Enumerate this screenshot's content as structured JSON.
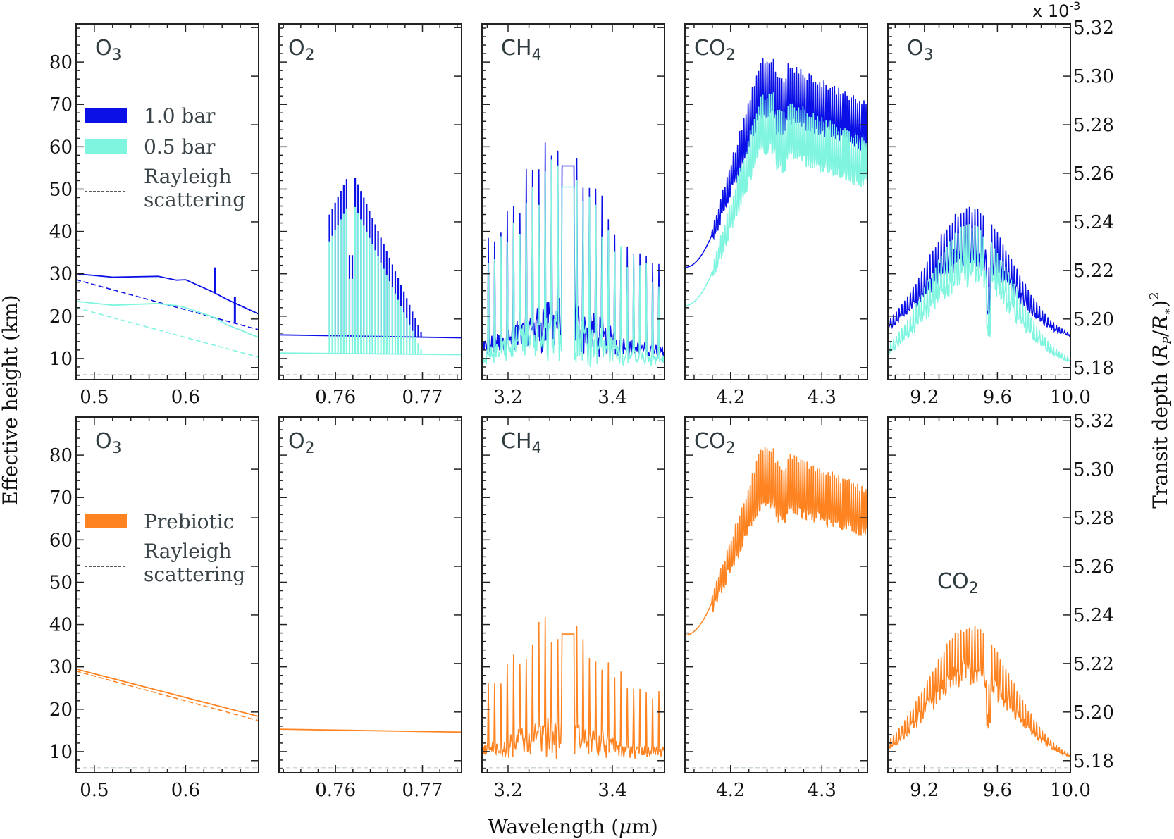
{
  "chart_data": {
    "type": "line",
    "title": "",
    "xlabel": "Wavelength (μm)",
    "ylabel_left": "Effective height (km)",
    "ylabel_right": "Transit depth (R_P/R_*)^2",
    "right_axis_multiplier": "x 10^-3",
    "ylim_left": [
      5,
      89
    ],
    "left_ticks": [
      10,
      20,
      30,
      40,
      50,
      60,
      70,
      80
    ],
    "ylim_right": [
      5.175,
      5.3215
    ],
    "right_ticks": [
      "5.18",
      "5.20",
      "5.22",
      "5.24",
      "5.26",
      "5.28",
      "5.30",
      "5.32"
    ],
    "ground_dashed_line_km": 6.2,
    "colors": {
      "1.0 bar": "#0a10e6",
      "0.5 bar": "#7ff5e0",
      "Prebiotic": "#ff8320",
      "axes": "#222222",
      "label_text": "#2f3b3f"
    },
    "columns": [
      {
        "species": "O3",
        "xlim": [
          0.48,
          0.68
        ],
        "xticks": [
          "0.5",
          "0.6"
        ],
        "xtick_values": [
          0.5,
          0.6
        ]
      },
      {
        "species": "O2",
        "xlim": [
          0.7535,
          0.7745
        ],
        "xticks": [
          "0.76",
          "0.77"
        ],
        "xtick_values": [
          0.76,
          0.77
        ]
      },
      {
        "species": "CH4",
        "xlim": [
          3.15,
          3.5
        ],
        "xticks": [
          "3.2",
          "3.4"
        ],
        "xtick_values": [
          3.2,
          3.4
        ]
      },
      {
        "species": "CO2",
        "xlim": [
          4.15,
          4.35
        ],
        "xticks": [
          "4.2",
          "4.3"
        ],
        "xtick_values": [
          4.2,
          4.3
        ]
      },
      {
        "species": "O3",
        "xlim": [
          9.0,
          10.0
        ],
        "xticks": [
          "9.2",
          "9.6",
          "10.0"
        ],
        "xtick_values": [
          9.2,
          9.6,
          10.0
        ]
      }
    ],
    "rows": [
      {
        "legend": [
          {
            "label": "1.0 bar",
            "style": "patch",
            "color": "#0a10e6"
          },
          {
            "label": "0.5 bar",
            "style": "patch",
            "color": "#7ff5e0"
          },
          {
            "label": "Rayleigh\nscattering",
            "style": "dashed",
            "color": "#222222"
          }
        ],
        "panel_labels": [
          "O3",
          "O2",
          "CH4",
          "CO2",
          "O3"
        ],
        "series": [
          {
            "name": "1.0 bar",
            "color": "#0a10e6",
            "panels": [
              {
                "continuum": [
                  [
                    0.48,
                    30
                  ],
                  [
                    0.52,
                    29.2
                  ],
                  [
                    0.57,
                    29.4
                  ],
                  [
                    0.59,
                    28.5
                  ],
                  [
                    0.6,
                    28.6
                  ],
                  [
                    0.63,
                    25.7
                  ],
                  [
                    0.645,
                    24
                  ],
                  [
                    0.68,
                    20.5
                  ]
                ],
                "rayleigh": [
                  [
                    0.48,
                    28.6
                  ],
                  [
                    0.68,
                    16.8
                  ]
                ],
                "features": [
                  [
                    0.632,
                    31.5
                  ],
                  [
                    0.654,
                    24.5
                  ]
                ]
              },
              {
                "continuum": [
                  [
                    0.7535,
                    15.6
                  ],
                  [
                    0.7745,
                    14.9
                  ]
                ],
                "band_peak_km": 53.5,
                "band_range": [
                  0.7593,
                  0.7705
                ]
              },
              {
                "baseline_km": 10,
                "max_peak_km": 63.5,
                "broad_peak_at": 3.32
              },
              {
                "left_edge_km": 31.5,
                "band_start": 4.18,
                "peak_max_km": 81.5,
                "trough_at": 4.255
              },
              {
                "baseline_km": 14,
                "peak_max_km": 46,
                "center": 9.6
              }
            ]
          },
          {
            "name": "0.5 bar",
            "color": "#7ff5e0",
            "panels": [
              {
                "continuum": [
                  [
                    0.48,
                    23.5
                  ],
                  [
                    0.52,
                    22.6
                  ],
                  [
                    0.57,
                    23
                  ],
                  [
                    0.59,
                    22.5
                  ],
                  [
                    0.6,
                    22
                  ],
                  [
                    0.63,
                    19.8
                  ],
                  [
                    0.645,
                    18
                  ],
                  [
                    0.68,
                    15
                  ]
                ],
                "rayleigh": [
                  [
                    0.48,
                    22
                  ],
                  [
                    0.68,
                    10.3
                  ]
                ]
              },
              {
                "continuum": [
                  [
                    0.7535,
                    11.3
                  ],
                  [
                    0.7745,
                    10.9
                  ]
                ],
                "band_peak_km": 46.5
              },
              {
                "baseline_km": 8,
                "max_peak_km": 58
              },
              {
                "left_edge_km": 22.5,
                "peak_max_km": 73
              },
              {
                "baseline_km": 8,
                "peak_max_km": 42
              }
            ]
          }
        ]
      },
      {
        "legend": [
          {
            "label": "Prebiotic",
            "style": "patch",
            "color": "#ff8320"
          },
          {
            "label": "Rayleigh\nscattering",
            "style": "dashed",
            "color": "#222222"
          }
        ],
        "panel_labels": [
          "O3",
          "O2",
          "CH4",
          "CO2",
          "CO2"
        ],
        "series": [
          {
            "name": "Prebiotic",
            "color": "#ff8320",
            "panels": [
              {
                "continuum": [
                  [
                    0.48,
                    29.5
                  ],
                  [
                    0.68,
                    18.3
                  ]
                ],
                "rayleigh": [
                  [
                    0.48,
                    29
                  ],
                  [
                    0.68,
                    17.3
                  ]
                ]
              },
              {
                "continuum": [
                  [
                    0.7535,
                    15.3
                  ],
                  [
                    0.7745,
                    14.6
                  ]
                ]
              },
              {
                "baseline_km": 8,
                "max_peak_km": 43
              },
              {
                "left_edge_km": 37.5,
                "peak_max_km": 82
              },
              {
                "baseline_km": 7.5,
                "peak_max_km": 40
              }
            ]
          }
        ]
      }
    ]
  }
}
